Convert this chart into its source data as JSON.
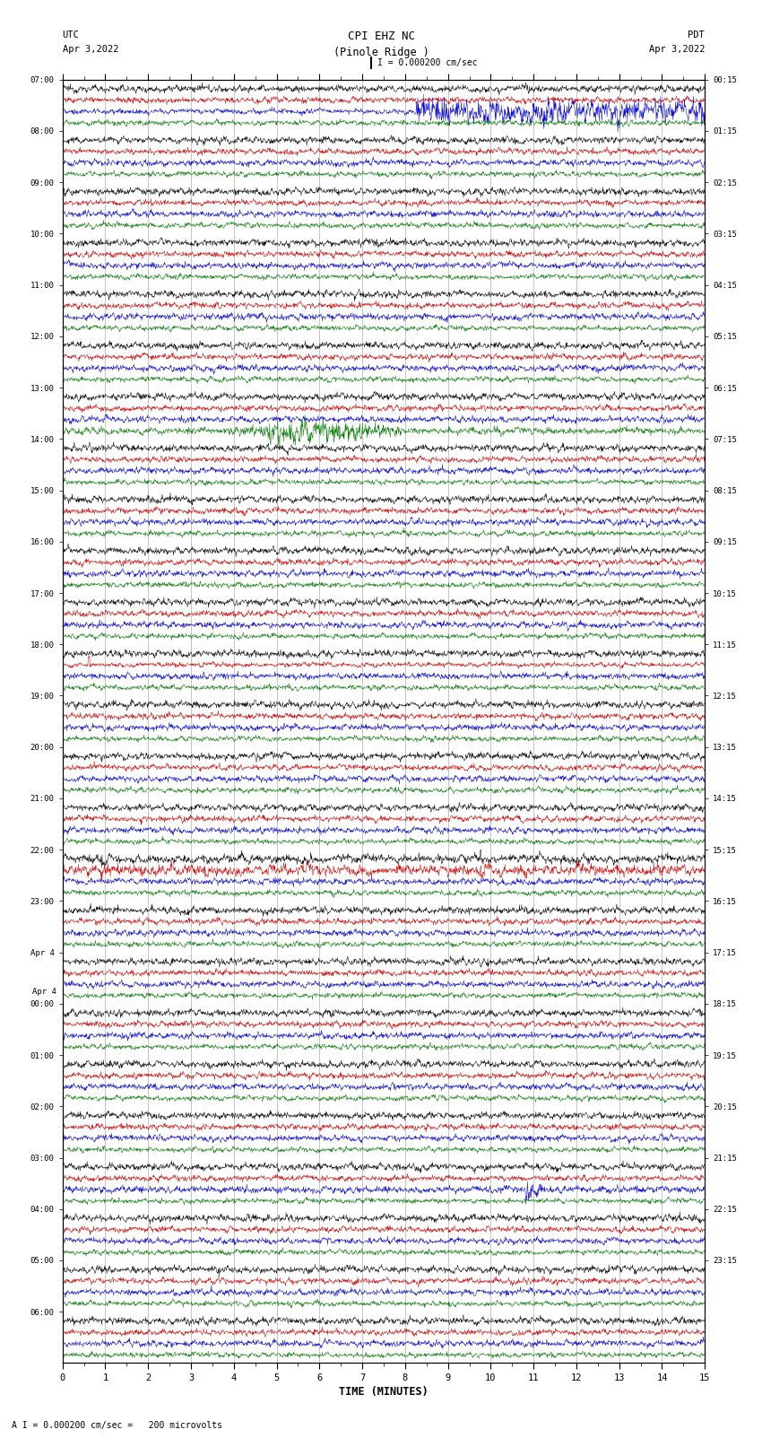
{
  "title_line1": "CPI EHZ NC",
  "title_line2": "(Pinole Ridge )",
  "scale_text": "I = 0.000200 cm/sec",
  "footer_text": "A I = 0.000200 cm/sec =   200 microvolts",
  "utc_label": "UTC",
  "utc_date": "Apr 3,2022",
  "pdt_label": "PDT",
  "pdt_date": "Apr 3,2022",
  "xlabel": "TIME (MINUTES)",
  "bg_color": "#ffffff",
  "trace_colors": [
    "#000000",
    "#cc0000",
    "#0000cc",
    "#007700"
  ],
  "time_minutes": 15,
  "left_times_utc": [
    "07:00",
    "",
    "",
    "",
    "08:00",
    "",
    "",
    "",
    "09:00",
    "",
    "",
    "",
    "10:00",
    "",
    "",
    "",
    "11:00",
    "",
    "",
    "",
    "12:00",
    "",
    "",
    "",
    "13:00",
    "",
    "",
    "",
    "14:00",
    "",
    "",
    "",
    "15:00",
    "",
    "",
    "",
    "16:00",
    "",
    "",
    "",
    "17:00",
    "",
    "",
    "",
    "18:00",
    "",
    "",
    "",
    "19:00",
    "",
    "",
    "",
    "20:00",
    "",
    "",
    "",
    "21:00",
    "",
    "",
    "",
    "22:00",
    "",
    "",
    "",
    "23:00",
    "",
    "",
    "",
    "Apr 4\n00:00",
    "",
    "",
    "",
    "01:00",
    "",
    "",
    "",
    "02:00",
    "",
    "",
    "",
    "03:00",
    "",
    "",
    "",
    "04:00",
    "",
    "",
    "",
    "05:00",
    "",
    "",
    "",
    "06:00",
    "",
    ""
  ],
  "left_times_labels": [
    "07:00",
    "08:00",
    "09:00",
    "10:00",
    "11:00",
    "12:00",
    "13:00",
    "14:00",
    "15:00",
    "16:00",
    "17:00",
    "18:00",
    "19:00",
    "20:00",
    "21:00",
    "22:00",
    "23:00",
    "Apr 4",
    "00:00",
    "01:00",
    "02:00",
    "03:00",
    "04:00",
    "05:00",
    "06:00"
  ],
  "right_times_pdt": [
    "00:15",
    "01:15",
    "02:15",
    "03:15",
    "04:15",
    "05:15",
    "06:15",
    "07:15",
    "08:15",
    "09:15",
    "10:15",
    "11:15",
    "12:15",
    "13:15",
    "14:15",
    "15:15",
    "16:15",
    "17:15",
    "18:15",
    "19:15",
    "20:15",
    "21:15",
    "22:15",
    "23:15"
  ],
  "n_rows": 25,
  "traces_per_row": 4,
  "noise_amplitude": 0.025,
  "trace_linewidth": 0.35
}
